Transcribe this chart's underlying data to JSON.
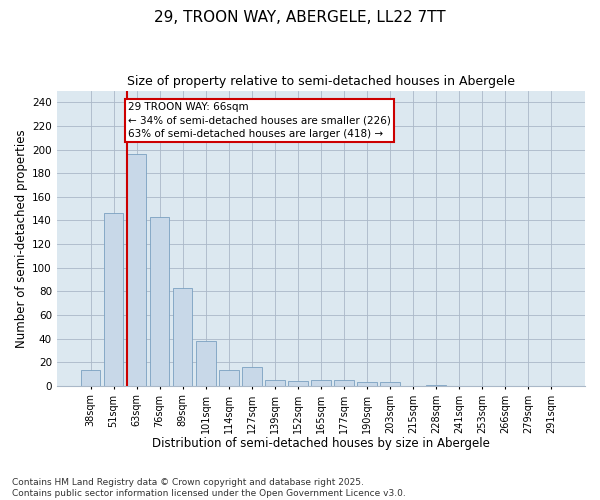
{
  "title": "29, TROON WAY, ABERGELE, LL22 7TT",
  "subtitle": "Size of property relative to semi-detached houses in Abergele",
  "xlabel": "Distribution of semi-detached houses by size in Abergele",
  "ylabel": "Number of semi-detached properties",
  "categories": [
    "38sqm",
    "51sqm",
    "63sqm",
    "76sqm",
    "89sqm",
    "101sqm",
    "114sqm",
    "127sqm",
    "139sqm",
    "152sqm",
    "165sqm",
    "177sqm",
    "190sqm",
    "203sqm",
    "215sqm",
    "228sqm",
    "241sqm",
    "253sqm",
    "266sqm",
    "279sqm",
    "291sqm"
  ],
  "values": [
    13,
    146,
    196,
    143,
    83,
    38,
    13,
    16,
    5,
    4,
    5,
    5,
    3,
    3,
    0,
    1,
    0,
    0,
    0,
    0,
    0
  ],
  "bar_color": "#c8d8e8",
  "bar_edge_color": "#7aa0c0",
  "property_line_label": "29 TROON WAY: 66sqm",
  "annotation_smaller": "← 34% of semi-detached houses are smaller (226)",
  "annotation_larger": "63% of semi-detached houses are larger (418) →",
  "annotation_box_color": "#cc0000",
  "ylim": [
    0,
    250
  ],
  "yticks": [
    0,
    20,
    40,
    60,
    80,
    100,
    120,
    140,
    160,
    180,
    200,
    220,
    240
  ],
  "grid_color": "#aab8c8",
  "background_color": "#dce8f0",
  "footer": "Contains HM Land Registry data © Crown copyright and database right 2025.\nContains public sector information licensed under the Open Government Licence v3.0.",
  "title_fontsize": 11,
  "subtitle_fontsize": 9,
  "xlabel_fontsize": 8.5,
  "ylabel_fontsize": 8.5,
  "footer_fontsize": 6.5,
  "annot_fontsize": 7.5,
  "tick_fontsize": 7,
  "ytick_fontsize": 7.5
}
